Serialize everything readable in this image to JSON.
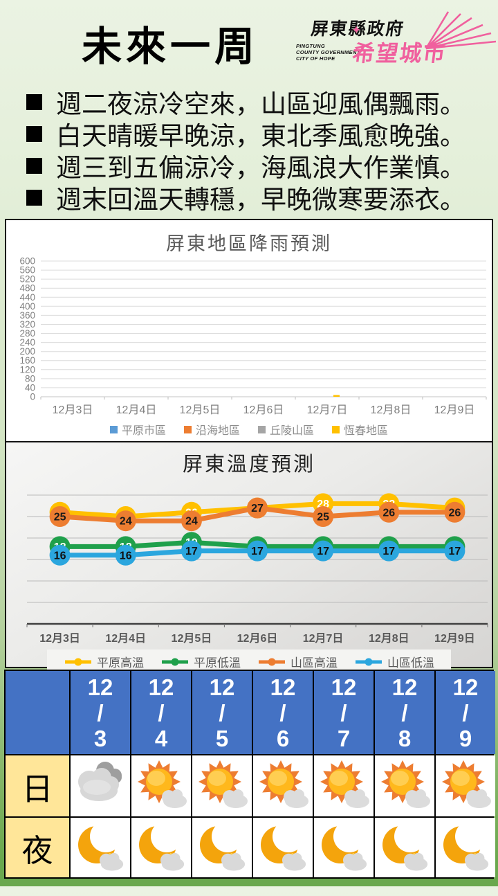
{
  "page": {
    "footer_green": "#6aa84e"
  },
  "header": {
    "title": "未來一周",
    "logo": {
      "org": "屏東縣政府",
      "sub_lines": [
        "PINGTUNG",
        "COUNTY GOVERNMENT",
        "CITY OF HOPE"
      ],
      "slogan": "希望城市",
      "pink": "#F0609E"
    }
  },
  "bullets": [
    "週二夜涼冷空來，山區迎風偶飄雨。",
    "白天晴暖早晚涼，東北季風愈晚強。",
    "週三到五偏涼冷，海風浪大作業慎。",
    "週末回溫天轉穩，早晚微寒要添衣。"
  ],
  "chart_data": [
    {
      "type": "bar",
      "title": "屏東地區降雨預測",
      "categories": [
        "12月3日",
        "12月4日",
        "12月5日",
        "12月6日",
        "12月7日",
        "12月8日",
        "12月9日"
      ],
      "series": [
        {
          "name": "平原市區",
          "color": "#5B9BD5",
          "values": [
            0,
            0,
            0,
            0,
            0,
            0,
            0
          ]
        },
        {
          "name": "沿海地區",
          "color": "#ED7D31",
          "values": [
            0,
            0,
            0,
            0,
            0,
            0,
            0
          ]
        },
        {
          "name": "丘陵山區",
          "color": "#A5A5A5",
          "values": [
            0,
            0,
            0,
            0,
            0,
            0,
            0
          ]
        },
        {
          "name": "恆春地區",
          "color": "#FFC000",
          "values": [
            0,
            0,
            0,
            0,
            5,
            0,
            0
          ]
        }
      ],
      "xlabel": "",
      "ylabel": "",
      "ylim": [
        0,
        600
      ],
      "ytick_step": 40,
      "grid": true,
      "legend_position": "bottom"
    },
    {
      "type": "line",
      "title": "屏東溫度預測",
      "categories": [
        "12月3日",
        "12月4日",
        "12月5日",
        "12月6日",
        "12月7日",
        "12月8日",
        "12月9日"
      ],
      "series": [
        {
          "name": "平原高溫",
          "color": "#FFC000",
          "label_color": "#ffffff",
          "values": [
            26,
            25,
            26,
            27,
            28,
            28,
            27
          ]
        },
        {
          "name": "平原低溫",
          "color": "#1FA04B",
          "label_color": "#ffffff",
          "values": [
            18,
            18,
            19,
            18,
            18,
            18,
            18
          ]
        },
        {
          "name": "山區高溫",
          "color": "#ED7D31",
          "label_color": "#1a1a1a",
          "values": [
            25,
            24,
            24,
            27,
            25,
            26,
            26
          ]
        },
        {
          "name": "山區低溫",
          "color": "#2BA6DE",
          "label_color": "#111111",
          "values": [
            16,
            16,
            17,
            17,
            17,
            17,
            17
          ]
        }
      ],
      "xlabel": "",
      "ylabel": "",
      "ylim": [
        0,
        30
      ],
      "ytick_step": 5,
      "grid": true,
      "legend_position": "bottom",
      "data_labels": true
    }
  ],
  "forecast_table": {
    "dates": [
      "12/3",
      "12/4",
      "12/5",
      "12/6",
      "12/7",
      "12/8",
      "12/9"
    ],
    "rows": [
      {
        "label": "日",
        "icons": [
          "cloudy-icon",
          "sun-cloud-icon",
          "sun-cloud-icon",
          "sun-cloud-icon",
          "sun-cloud-icon",
          "sun-cloud-icon",
          "sun-cloud-icon"
        ]
      },
      {
        "label": "夜",
        "icons": [
          "moon-cloud-icon",
          "moon-cloud-icon",
          "moon-cloud-icon",
          "moon-cloud-icon",
          "moon-cloud-icon",
          "moon-cloud-icon",
          "moon-cloud-icon"
        ]
      }
    ],
    "header_bg": "#4472C4",
    "label_bg": "#FFE699"
  }
}
